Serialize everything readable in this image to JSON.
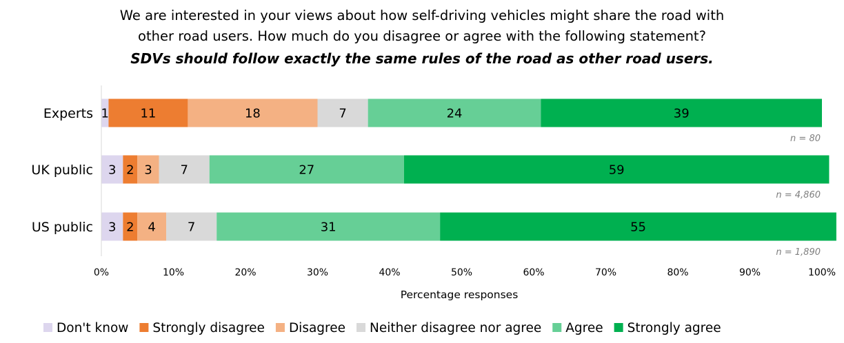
{
  "chart_data": {
    "type": "bar",
    "orientation": "horizontal",
    "stacked": true,
    "title_lines": [
      "We are interested in your views about how self-driving vehicles might share the road with",
      "other road users. How much do you disagree or agree with the following statement?"
    ],
    "subtitle": "SDVs should follow exactly the same rules of the road as other road users.",
    "xlabel": "Percentage responses",
    "ylabel": "",
    "xlim": [
      0,
      100
    ],
    "x_ticks": [
      "0%",
      "10%",
      "20%",
      "30%",
      "40%",
      "50%",
      "60%",
      "70%",
      "80%",
      "90%",
      "100%"
    ],
    "categories": [
      "Experts",
      "UK public",
      "US public"
    ],
    "sample_sizes": [
      "n = 80",
      "n = 4,860",
      "n = 1,890"
    ],
    "legend_position": "bottom",
    "grid": false,
    "series": [
      {
        "name": "Don't know",
        "color": "#ddd6ee",
        "values": [
          1,
          3,
          3
        ]
      },
      {
        "name": "Strongly disagree",
        "color": "#ed7d31",
        "values": [
          11,
          2,
          2
        ]
      },
      {
        "name": "Disagree",
        "color": "#f4b183",
        "values": [
          18,
          3,
          4
        ]
      },
      {
        "name": "Neither disagree nor agree",
        "color": "#d9d9d9",
        "values": [
          7,
          7,
          7
        ]
      },
      {
        "name": "Agree",
        "color": "#66cf96",
        "values": [
          24,
          27,
          31
        ]
      },
      {
        "name": "Strongly agree",
        "color": "#00b050",
        "values": [
          39,
          59,
          55
        ]
      }
    ]
  }
}
